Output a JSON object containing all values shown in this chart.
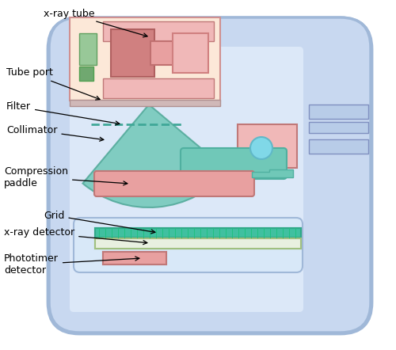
{
  "bg_color": "#c8d8f0",
  "fig_bg": "#ffffff",
  "colors": {
    "pink_light": "#f0b8b8",
    "pink_dark": "#d08080",
    "pink_medium": "#e8a0a0",
    "teal": "#70c8b8",
    "teal_dark": "#50b0a0",
    "green_light": "#98c898",
    "green_dark": "#70a870",
    "frame_light": "#d0dcf0",
    "frame_border": "#a0b8e0",
    "blue_outline": "#8090c0",
    "teal_grid": "#40c0a0",
    "cream": "#fce8d8"
  },
  "labels": {
    "xray_tube": "x-ray tube",
    "tube_port": "Tube port",
    "filter": "Filter",
    "collimator": "Collimator",
    "compression": "Compression\npaddle",
    "grid": "Grid",
    "xray_detector": "x-ray detector",
    "phototimer": "Phototimer\ndetector"
  }
}
